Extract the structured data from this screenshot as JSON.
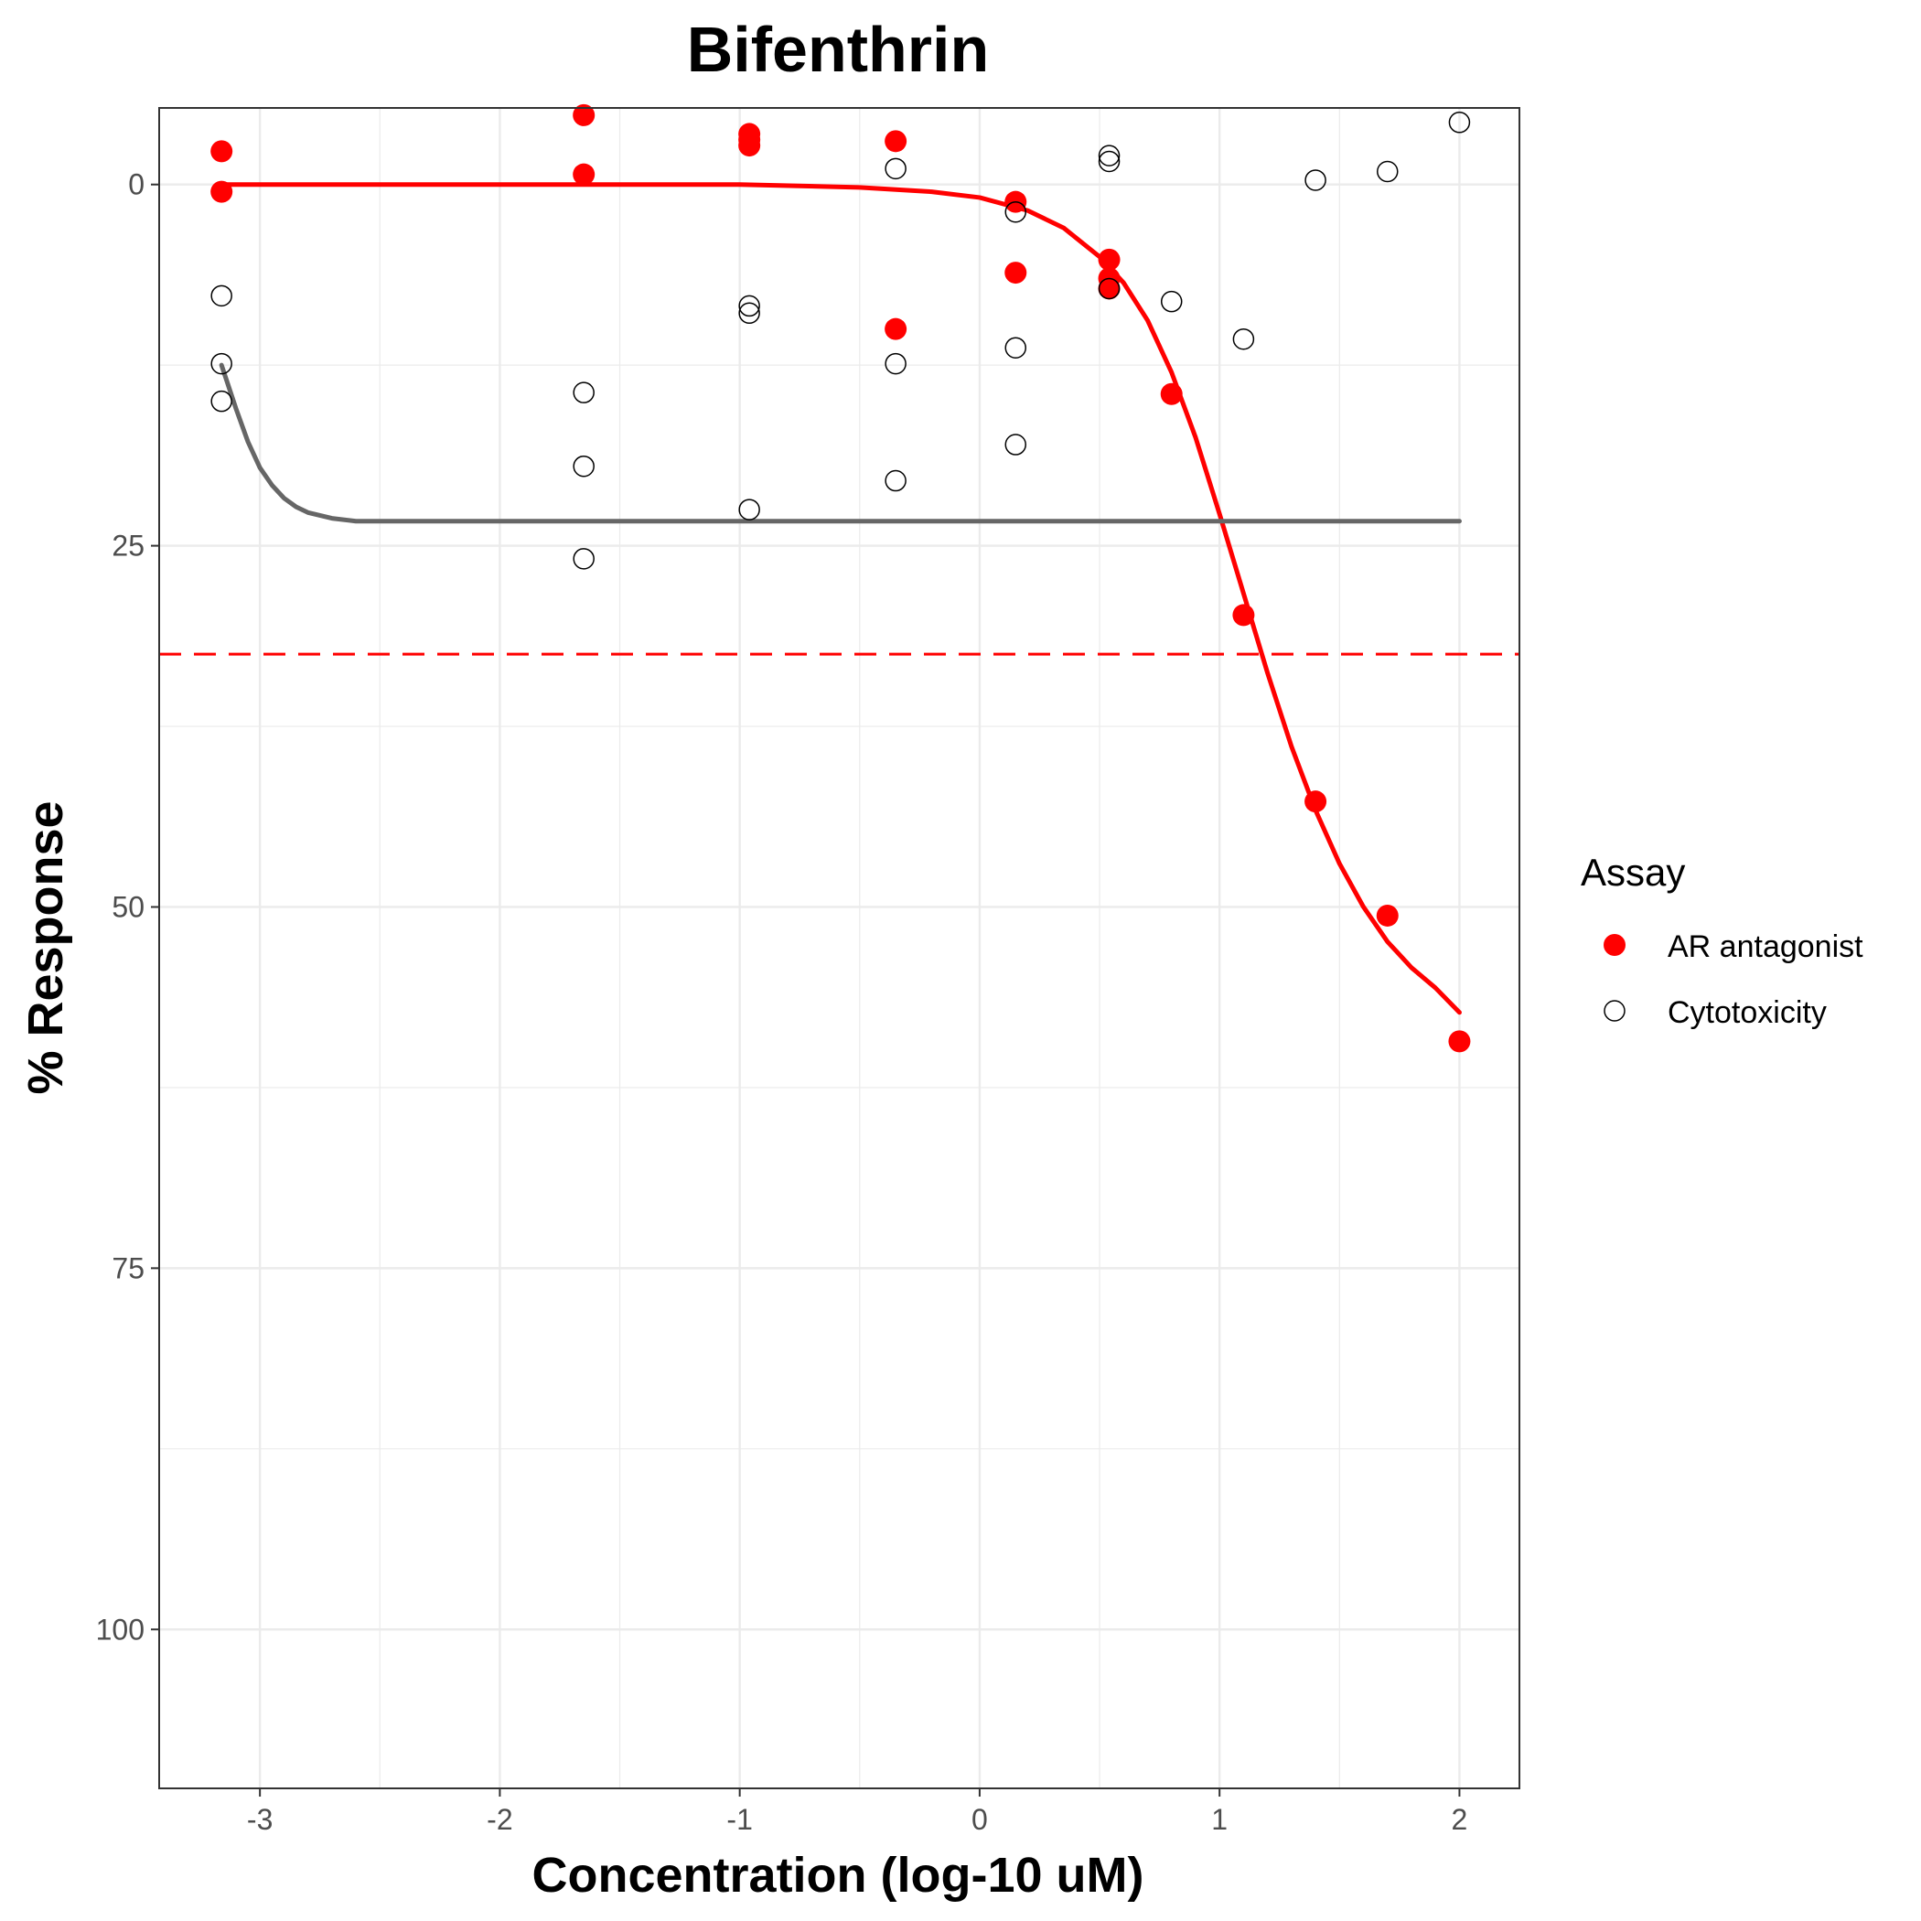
{
  "chart_data": {
    "type": "scatter",
    "title": "Bifenthrin",
    "xlabel": "Concentration (log-10 uM)",
    "ylabel": "% Response",
    "xlim": [
      -3.42,
      2.25
    ],
    "ylim": [
      -5.3,
      111
    ],
    "y_reversed": true,
    "x_ticks": [
      -3,
      -2,
      -1,
      0,
      1,
      2
    ],
    "y_ticks": [
      0,
      25,
      50,
      75,
      100
    ],
    "x_tick_labels": [
      "-3",
      "-2",
      "-1",
      "0",
      "1",
      "2"
    ],
    "y_tick_labels": [
      "0",
      "25",
      "50",
      "75",
      "100"
    ],
    "grid": true,
    "legend": {
      "title": "Assay",
      "position": "right",
      "entries": [
        "AR antagonist",
        "Cytotoxicity"
      ]
    },
    "colors": {
      "ar": "#ff0000",
      "cyto_point": "#000000",
      "cyto_curve": "#666666",
      "grid": "#ebebeb"
    },
    "series": [
      {
        "name": "AR antagonist",
        "marker": "filled-circle",
        "points": [
          {
            "x": -3.16,
            "y": -2.3
          },
          {
            "x": -3.16,
            "y": 0.5
          },
          {
            "x": -1.65,
            "y": -4.8
          },
          {
            "x": -1.65,
            "y": -0.7
          },
          {
            "x": -0.96,
            "y": -3.5
          },
          {
            "x": -0.96,
            "y": -3.1
          },
          {
            "x": -0.96,
            "y": -2.7
          },
          {
            "x": -0.35,
            "y": -3.0
          },
          {
            "x": -0.35,
            "y": 10.0
          },
          {
            "x": 0.15,
            "y": 1.2
          },
          {
            "x": 0.15,
            "y": 6.1
          },
          {
            "x": 0.54,
            "y": 5.2
          },
          {
            "x": 0.54,
            "y": 6.5
          },
          {
            "x": 0.54,
            "y": 7.2
          },
          {
            "x": 0.8,
            "y": 14.5
          },
          {
            "x": 1.1,
            "y": 29.8
          },
          {
            "x": 1.4,
            "y": 42.7
          },
          {
            "x": 1.7,
            "y": 50.6
          },
          {
            "x": 2.0,
            "y": 59.3
          }
        ]
      },
      {
        "name": "Cytotoxicity",
        "marker": "open-circle",
        "points": [
          {
            "x": -3.16,
            "y": 7.7
          },
          {
            "x": -3.16,
            "y": 12.4
          },
          {
            "x": -3.16,
            "y": 15.0
          },
          {
            "x": -1.65,
            "y": 14.4
          },
          {
            "x": -1.65,
            "y": 19.5
          },
          {
            "x": -1.65,
            "y": 25.9
          },
          {
            "x": -0.96,
            "y": 8.4
          },
          {
            "x": -0.96,
            "y": 8.9
          },
          {
            "x": -0.96,
            "y": 22.5
          },
          {
            "x": -0.35,
            "y": -1.1
          },
          {
            "x": -0.35,
            "y": 12.4
          },
          {
            "x": -0.35,
            "y": 20.5
          },
          {
            "x": 0.15,
            "y": 1.9
          },
          {
            "x": 0.15,
            "y": 11.3
          },
          {
            "x": 0.15,
            "y": 18.0
          },
          {
            "x": 0.54,
            "y": -2.0
          },
          {
            "x": 0.54,
            "y": -1.6
          },
          {
            "x": 0.54,
            "y": 7.2
          },
          {
            "x": 0.8,
            "y": 8.1
          },
          {
            "x": 1.1,
            "y": 10.7
          },
          {
            "x": 1.4,
            "y": -0.3
          },
          {
            "x": 1.7,
            "y": -0.9
          },
          {
            "x": 2.0,
            "y": -4.3
          }
        ]
      }
    ],
    "curves": [
      {
        "name": "AR antagonist",
        "points": [
          {
            "x": -3.16,
            "y": 0
          },
          {
            "x": -2.0,
            "y": 0
          },
          {
            "x": -1.0,
            "y": 0
          },
          {
            "x": -0.5,
            "y": 0.2
          },
          {
            "x": -0.2,
            "y": 0.5
          },
          {
            "x": 0.0,
            "y": 0.9
          },
          {
            "x": 0.2,
            "y": 1.8
          },
          {
            "x": 0.35,
            "y": 3.0
          },
          {
            "x": 0.5,
            "y": 5.0
          },
          {
            "x": 0.6,
            "y": 6.8
          },
          {
            "x": 0.7,
            "y": 9.4
          },
          {
            "x": 0.8,
            "y": 13.0
          },
          {
            "x": 0.9,
            "y": 17.5
          },
          {
            "x": 1.0,
            "y": 22.8
          },
          {
            "x": 1.1,
            "y": 28.3
          },
          {
            "x": 1.2,
            "y": 33.8
          },
          {
            "x": 1.3,
            "y": 38.9
          },
          {
            "x": 1.4,
            "y": 43.3
          },
          {
            "x": 1.5,
            "y": 47.0
          },
          {
            "x": 1.6,
            "y": 50.0
          },
          {
            "x": 1.7,
            "y": 52.4
          },
          {
            "x": 1.8,
            "y": 54.2
          },
          {
            "x": 1.9,
            "y": 55.6
          },
          {
            "x": 2.0,
            "y": 57.3
          }
        ]
      },
      {
        "name": "Cytotoxicity",
        "points": [
          {
            "x": -3.16,
            "y": 12.5
          },
          {
            "x": -3.1,
            "y": 15.5
          },
          {
            "x": -3.05,
            "y": 17.8
          },
          {
            "x": -3.0,
            "y": 19.6
          },
          {
            "x": -2.95,
            "y": 20.8
          },
          {
            "x": -2.9,
            "y": 21.7
          },
          {
            "x": -2.85,
            "y": 22.3
          },
          {
            "x": -2.8,
            "y": 22.7
          },
          {
            "x": -2.7,
            "y": 23.1
          },
          {
            "x": -2.6,
            "y": 23.3
          },
          {
            "x": -2.5,
            "y": 23.3
          },
          {
            "x": 2.0,
            "y": 23.3
          }
        ]
      }
    ],
    "reference_lines": [
      {
        "orientation": "horizontal",
        "y": 32.5,
        "style": "dashed",
        "color": "#ff0000"
      }
    ]
  }
}
